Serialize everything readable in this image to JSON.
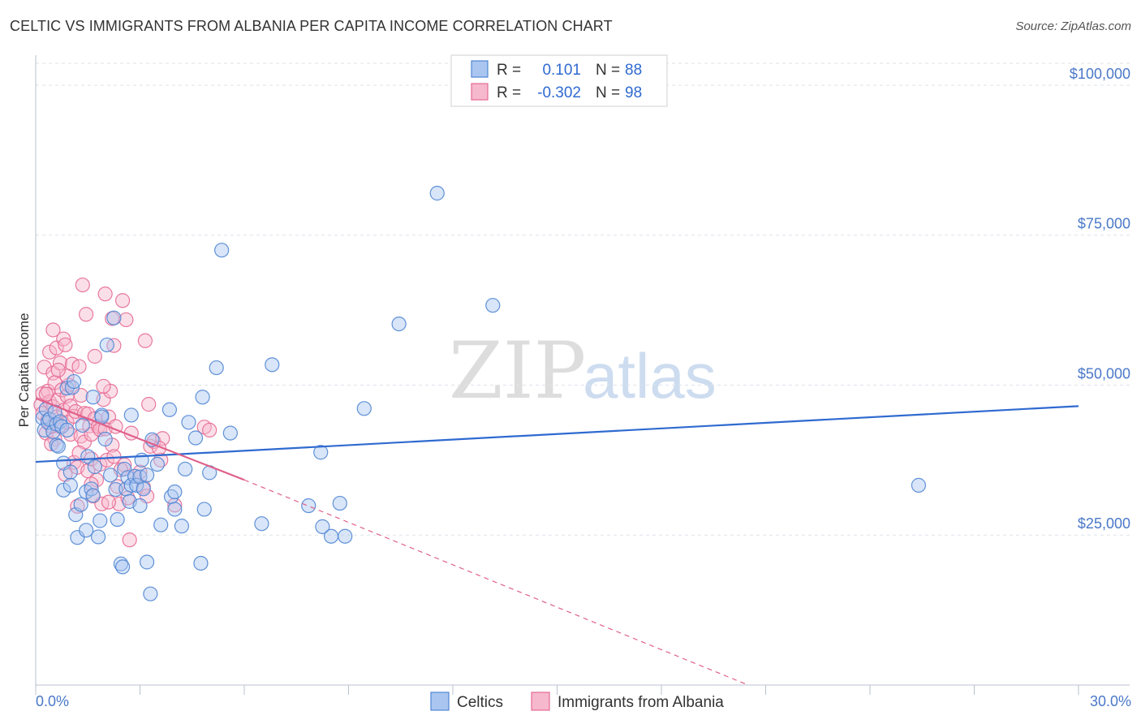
{
  "title": "CELTIC VS IMMIGRANTS FROM ALBANIA PER CAPITA INCOME CORRELATION CHART",
  "source": "Source: ZipAtlas.com",
  "watermark": {
    "zip": "ZIP",
    "atlas": "atlas"
  },
  "colors": {
    "celtic_fill": "#aac6f0",
    "celtic_stroke": "#4f86d4",
    "celtic_line": "#2f6ad0",
    "albania_fill": "#f6b8cc",
    "albania_stroke": "#e56a94",
    "albania_line": "#e0608a",
    "axis_text": "#4a78c8",
    "grid": "#dde3ea"
  },
  "legend": {
    "rows": [
      {
        "r_label": "R =",
        "r_value": "0.101",
        "n_label": "N =",
        "n_value": "88"
      },
      {
        "r_label": "R =",
        "r_value": "-0.302",
        "n_label": "N =",
        "n_value": "98"
      }
    ]
  },
  "chart_data": {
    "type": "scatter",
    "title": "CELTIC VS IMMIGRANTS FROM ALBANIA PER CAPITA INCOME CORRELATION CHART",
    "xlabel": "",
    "ylabel": "Per Capita Income",
    "xlim": [
      0,
      30
    ],
    "ylim": [
      0,
      105000
    ],
    "x_tick_labels": [
      "0.0%",
      "30.0%"
    ],
    "y_ticks": [
      25000,
      50000,
      75000,
      100000
    ],
    "y_tick_labels": [
      "$25,000",
      "$50,000",
      "$75,000",
      "$100,000"
    ],
    "grid": true,
    "legend_position": "top-center",
    "series": [
      {
        "name": "Celtics",
        "r": 0.101,
        "n": 88,
        "trend": {
          "x": [
            0,
            30
          ],
          "y": [
            37200,
            46500
          ],
          "dashed_from": null
        },
        "points": [
          [
            0.2,
            44500
          ],
          [
            0.25,
            42500
          ],
          [
            0.3,
            46000
          ],
          [
            0.35,
            43800
          ],
          [
            0.4,
            44300
          ],
          [
            0.5,
            42200
          ],
          [
            0.55,
            45500
          ],
          [
            0.6,
            43500
          ],
          [
            0.6,
            40000
          ],
          [
            0.65,
            39800
          ],
          [
            0.7,
            43900
          ],
          [
            0.75,
            43100
          ],
          [
            0.8,
            37000
          ],
          [
            0.8,
            32500
          ],
          [
            0.9,
            49500
          ],
          [
            0.9,
            42500
          ],
          [
            1.0,
            35500
          ],
          [
            1.0,
            33300
          ],
          [
            1.05,
            49600
          ],
          [
            1.1,
            50600
          ],
          [
            1.15,
            28400
          ],
          [
            1.2,
            24600
          ],
          [
            1.3,
            30100
          ],
          [
            1.35,
            43300
          ],
          [
            1.45,
            32200
          ],
          [
            1.45,
            25800
          ],
          [
            1.5,
            38100
          ],
          [
            1.6,
            32700
          ],
          [
            1.65,
            31600
          ],
          [
            1.65,
            48000
          ],
          [
            1.7,
            36400
          ],
          [
            1.8,
            24700
          ],
          [
            1.85,
            27400
          ],
          [
            1.9,
            45000
          ],
          [
            1.9,
            44700
          ],
          [
            2.0,
            41000
          ],
          [
            2.05,
            56700
          ],
          [
            2.15,
            35000
          ],
          [
            2.25,
            61200
          ],
          [
            2.3,
            32600
          ],
          [
            2.35,
            27600
          ],
          [
            2.45,
            20200
          ],
          [
            2.5,
            19700
          ],
          [
            2.55,
            36000
          ],
          [
            2.6,
            32700
          ],
          [
            2.65,
            34600
          ],
          [
            2.7,
            30600
          ],
          [
            2.75,
            45000
          ],
          [
            2.75,
            33300
          ],
          [
            2.85,
            34800
          ],
          [
            2.9,
            33300
          ],
          [
            3.0,
            34700
          ],
          [
            3.0,
            29900
          ],
          [
            3.05,
            37500
          ],
          [
            3.1,
            32700
          ],
          [
            3.2,
            35000
          ],
          [
            3.2,
            20500
          ],
          [
            3.3,
            15200
          ],
          [
            3.35,
            40900
          ],
          [
            3.5,
            36800
          ],
          [
            3.6,
            26700
          ],
          [
            3.85,
            45900
          ],
          [
            3.9,
            31400
          ],
          [
            4.0,
            32200
          ],
          [
            4.0,
            29300
          ],
          [
            4.2,
            26500
          ],
          [
            4.3,
            36000
          ],
          [
            4.4,
            43800
          ],
          [
            4.6,
            41200
          ],
          [
            4.75,
            20300
          ],
          [
            4.8,
            48000
          ],
          [
            4.85,
            29300
          ],
          [
            5.0,
            35400
          ],
          [
            5.2,
            52900
          ],
          [
            5.35,
            72500
          ],
          [
            5.6,
            42000
          ],
          [
            6.5,
            26900
          ],
          [
            6.8,
            53400
          ],
          [
            7.85,
            29900
          ],
          [
            8.2,
            38800
          ],
          [
            8.25,
            26400
          ],
          [
            8.5,
            24800
          ],
          [
            8.75,
            30300
          ],
          [
            8.9,
            24800
          ],
          [
            9.45,
            46100
          ],
          [
            10.45,
            60200
          ],
          [
            11.55,
            82000
          ],
          [
            13.15,
            63300
          ],
          [
            25.4,
            33300
          ]
        ]
      },
      {
        "name": "Immigrants from Albania",
        "r": -0.302,
        "n": 98,
        "trend": {
          "x": [
            0,
            6
          ],
          "y": [
            47800,
            34200
          ],
          "dashed_to": {
            "x": 20.5,
            "y": 0
          }
        },
        "points": [
          [
            0.15,
            46700
          ],
          [
            0.2,
            48600
          ],
          [
            0.2,
            45300
          ],
          [
            0.25,
            53000
          ],
          [
            0.3,
            42000
          ],
          [
            0.35,
            49000
          ],
          [
            0.35,
            44200
          ],
          [
            0.4,
            55500
          ],
          [
            0.4,
            47200
          ],
          [
            0.45,
            43100
          ],
          [
            0.5,
            59200
          ],
          [
            0.5,
            52000
          ],
          [
            0.5,
            46400
          ],
          [
            0.55,
            41000
          ],
          [
            0.55,
            50400
          ],
          [
            0.6,
            56200
          ],
          [
            0.6,
            44700
          ],
          [
            0.65,
            47500
          ],
          [
            0.7,
            53700
          ],
          [
            0.7,
            43300
          ],
          [
            0.75,
            49200
          ],
          [
            0.8,
            57700
          ],
          [
            0.8,
            45800
          ],
          [
            0.85,
            35100
          ],
          [
            0.9,
            48200
          ],
          [
            0.9,
            43800
          ],
          [
            0.95,
            50000
          ],
          [
            1.0,
            41800
          ],
          [
            1.0,
            46500
          ],
          [
            1.05,
            53500
          ],
          [
            1.1,
            44800
          ],
          [
            1.1,
            37100
          ],
          [
            1.15,
            45600
          ],
          [
            1.2,
            36300
          ],
          [
            1.2,
            29800
          ],
          [
            1.25,
            53100
          ],
          [
            1.3,
            41500
          ],
          [
            1.3,
            48300
          ],
          [
            1.35,
            66700
          ],
          [
            1.4,
            40500
          ],
          [
            1.4,
            45300
          ],
          [
            1.45,
            61800
          ],
          [
            1.5,
            35700
          ],
          [
            1.5,
            45200
          ],
          [
            1.55,
            43200
          ],
          [
            1.6,
            37700
          ],
          [
            1.6,
            41800
          ],
          [
            1.65,
            31500
          ],
          [
            1.7,
            54800
          ],
          [
            1.7,
            44400
          ],
          [
            1.75,
            34200
          ],
          [
            1.8,
            43100
          ],
          [
            1.85,
            42600
          ],
          [
            1.85,
            36800
          ],
          [
            1.9,
            30200
          ],
          [
            1.95,
            47600
          ],
          [
            2.0,
            65200
          ],
          [
            2.0,
            42700
          ],
          [
            2.05,
            37500
          ],
          [
            2.1,
            44700
          ],
          [
            2.15,
            49000
          ],
          [
            2.2,
            61100
          ],
          [
            2.2,
            40000
          ],
          [
            2.25,
            38100
          ],
          [
            2.25,
            56600
          ],
          [
            2.3,
            43100
          ],
          [
            2.35,
            33100
          ],
          [
            2.4,
            30200
          ],
          [
            2.5,
            64100
          ],
          [
            2.55,
            36700
          ],
          [
            2.6,
            60900
          ],
          [
            2.65,
            31200
          ],
          [
            2.7,
            24200
          ],
          [
            2.75,
            42000
          ],
          [
            2.85,
            34800
          ],
          [
            3.0,
            35500
          ],
          [
            3.1,
            33000
          ],
          [
            3.15,
            57400
          ],
          [
            3.2,
            31500
          ],
          [
            3.25,
            46800
          ],
          [
            3.3,
            39800
          ],
          [
            3.4,
            40600
          ],
          [
            3.6,
            37500
          ],
          [
            3.65,
            41100
          ],
          [
            4.0,
            30000
          ],
          [
            4.85,
            43000
          ],
          [
            5.0,
            42500
          ],
          [
            0.3,
            48500
          ],
          [
            0.45,
            40200
          ],
          [
            0.9,
            51500
          ],
          [
            1.6,
            33500
          ],
          [
            2.1,
            30500
          ],
          [
            0.65,
            52500
          ],
          [
            1.25,
            38700
          ],
          [
            2.45,
            35900
          ],
          [
            0.85,
            56700
          ],
          [
            1.95,
            49800
          ],
          [
            3.55,
            39500
          ]
        ]
      }
    ]
  },
  "bottom_legend": [
    {
      "label": "Celtics"
    },
    {
      "label": "Immigrants from Albania"
    }
  ]
}
